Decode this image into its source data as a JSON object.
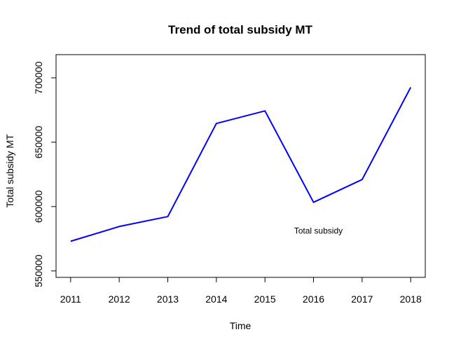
{
  "chart_data": {
    "type": "line",
    "title": "Trend of total subsidy MT",
    "xlabel": "Time",
    "ylabel": "Total subsidy MT",
    "x": [
      2011,
      2012,
      2013,
      2014,
      2015,
      2016,
      2017,
      2018
    ],
    "series": [
      {
        "color": "#0000ff",
        "values": [
          573000,
          584500,
          592200,
          664500,
          674300,
          603300,
          621000,
          692600
        ]
      }
    ],
    "xticks": [
      "2011",
      "2012",
      "2013",
      "2014",
      "2015",
      "2016",
      "2017",
      "2018"
    ],
    "yticks": [
      "550000",
      "600000",
      "650000",
      "700000"
    ],
    "ylim": [
      545000,
      718000
    ],
    "xlim": [
      2010.7,
      2018.3
    ],
    "grid": false,
    "annotations": [
      {
        "text": "Total subsidy",
        "x": 2016.1,
        "y": 579000
      }
    ]
  }
}
